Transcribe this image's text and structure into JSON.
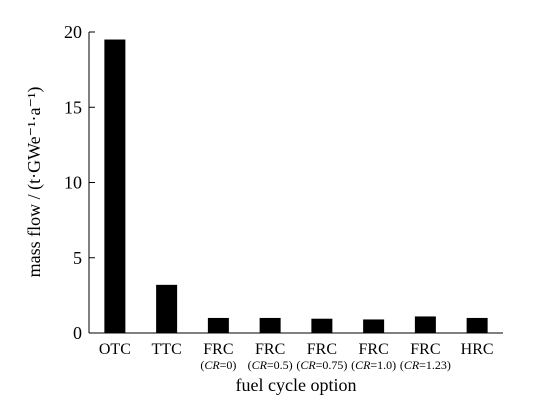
{
  "chart_data": {
    "type": "bar",
    "categories": [
      "OTC",
      "TTC",
      "FRC",
      "FRC",
      "FRC",
      "FRC",
      "FRC",
      "HRC"
    ],
    "subcategories": [
      "",
      "",
      "CR=0",
      "CR=0.5",
      "CR=0.75",
      "CR=1.0",
      "CR=1.23",
      ""
    ],
    "values": [
      19.5,
      3.2,
      1.0,
      1.0,
      0.95,
      0.9,
      1.1,
      1.0
    ],
    "title": "",
    "xlabel": "fuel cycle option",
    "ylabel": "mass flow / (t·GWe⁻¹·a⁻¹)",
    "ylim": [
      0,
      20
    ],
    "yticks": [
      "0",
      "5",
      "10",
      "15",
      "20"
    ],
    "grid": false,
    "bar_color": "#000000"
  }
}
